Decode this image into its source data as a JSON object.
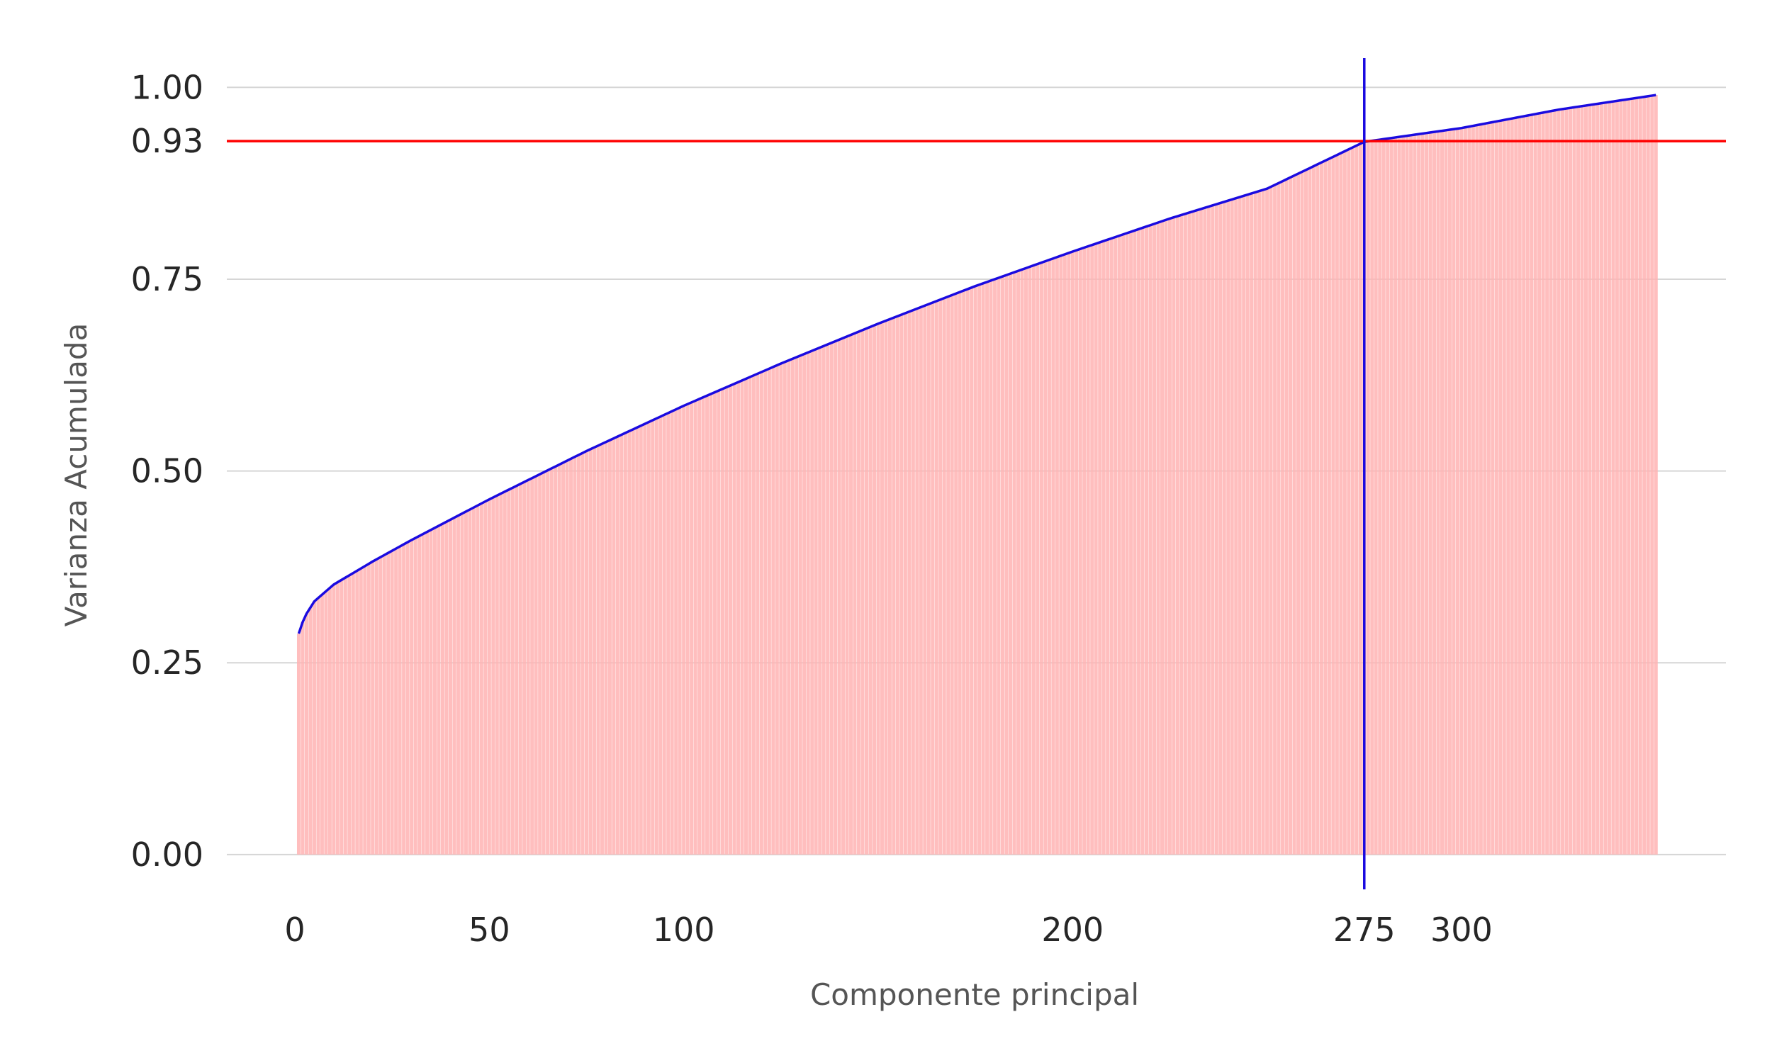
{
  "chart_data": {
    "type": "bar",
    "title": "",
    "xlabel": "Componente principal",
    "ylabel": "Varianza Acumulada",
    "xlim": [
      -17.5,
      368
    ],
    "ylim": [
      -0.05,
      1.04
    ],
    "x_ticks": [
      0,
      50,
      100,
      200,
      275,
      300
    ],
    "x_tick_labels": [
      "0",
      "50",
      "100",
      "200",
      "275",
      "300"
    ],
    "y_ticks": [
      0.0,
      0.25,
      0.5,
      0.75,
      0.93,
      1.0
    ],
    "y_tick_labels": [
      "0.00",
      "0.25",
      "0.50",
      "0.75",
      "0.93",
      "1.00"
    ],
    "grid": "horizontal",
    "components": {
      "first": 1,
      "last": 350
    },
    "series": [
      {
        "type": "bar",
        "color": "#ffb3b3",
        "x": [
          1,
          2,
          3,
          5,
          10,
          20,
          30,
          50,
          75,
          100,
          125,
          150,
          175,
          200,
          225,
          250,
          275,
          300,
          325,
          350
        ],
        "values": [
          0.288,
          0.303,
          0.314,
          0.33,
          0.352,
          0.382,
          0.41,
          0.463,
          0.526,
          0.585,
          0.64,
          0.692,
          0.741,
          0.786,
          0.829,
          0.868,
          0.929,
          0.947,
          0.971,
          0.99
        ]
      },
      {
        "type": "line",
        "color": "#1a0be0",
        "x": [
          1,
          2,
          3,
          5,
          10,
          20,
          30,
          50,
          75,
          100,
          125,
          150,
          175,
          200,
          225,
          250,
          275,
          300,
          325,
          350
        ],
        "values": [
          0.288,
          0.303,
          0.314,
          0.33,
          0.352,
          0.382,
          0.41,
          0.463,
          0.526,
          0.585,
          0.64,
          0.692,
          0.741,
          0.786,
          0.829,
          0.868,
          0.929,
          0.947,
          0.971,
          0.99
        ]
      }
    ],
    "reference_lines": [
      {
        "orientation": "horizontal",
        "value": 0.93,
        "color": "#ff0000"
      },
      {
        "orientation": "vertical",
        "value": 275,
        "color": "#1a0be0"
      }
    ]
  }
}
